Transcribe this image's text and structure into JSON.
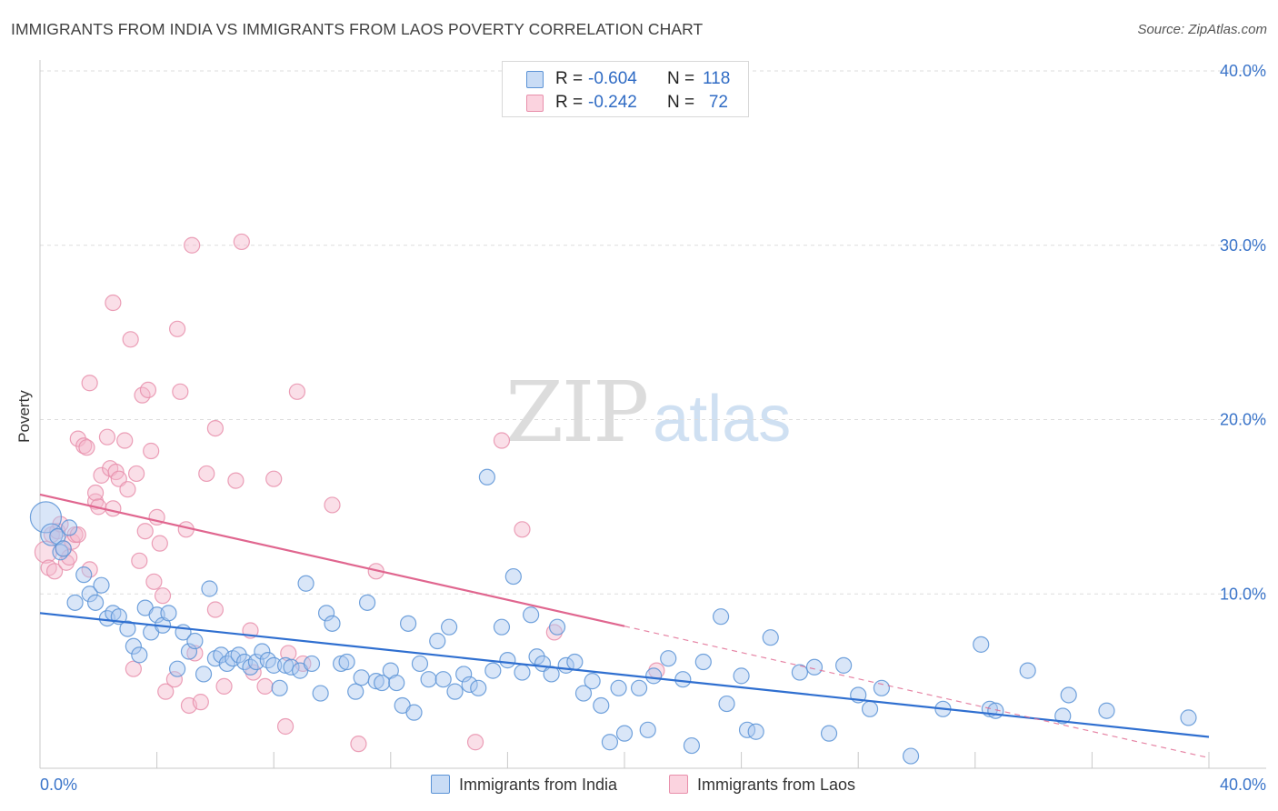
{
  "header": {
    "title": "IMMIGRANTS FROM INDIA VS IMMIGRANTS FROM LAOS POVERTY CORRELATION CHART",
    "source": "Source: ZipAtlas.com"
  },
  "watermark": {
    "zip": "ZIP",
    "atlas": "atlas"
  },
  "legend": {
    "rows": [
      {
        "r_label": "R =",
        "r_value": "-0.604",
        "n_label": "N =",
        "n_value": "118"
      },
      {
        "r_label": "R =",
        "r_value": "-0.242",
        "n_label": "N =",
        "n_value": "72"
      }
    ]
  },
  "bottom_legend": {
    "india": "Immigrants from India",
    "laos": "Immigrants from Laos"
  },
  "colors": {
    "india_fill": "#aac8f0",
    "india_stroke": "#5b93d6",
    "india_line": "#2f6fd0",
    "laos_fill": "#f5b8cb",
    "laos_stroke": "#e88fab",
    "laos_line": "#e0668f",
    "tick_text": "#3a74c9",
    "grid": "#dddddd"
  },
  "chart_data": {
    "type": "scatter",
    "title": "IMMIGRANTS FROM INDIA VS IMMIGRANTS FROM LAOS POVERTY CORRELATION CHART",
    "xlabel": "",
    "ylabel": "Poverty",
    "xlim": [
      0,
      40
    ],
    "ylim": [
      0,
      40
    ],
    "x_tick_labels": [
      "0.0%",
      "40.0%"
    ],
    "y_ticks": [
      10,
      20,
      30,
      40
    ],
    "y_tick_labels": [
      "10.0%",
      "20.0%",
      "30.0%",
      "40.0%"
    ],
    "grid": true,
    "series": [
      {
        "name": "Immigrants from India",
        "r": -0.604,
        "n": 118,
        "trend": {
          "x0": 0,
          "y0": 8.9,
          "x1": 40,
          "y1": 1.8,
          "dashed_from": null
        },
        "points": [
          [
            0.2,
            14.4,
            3
          ],
          [
            0.4,
            13.4,
            2
          ],
          [
            0.6,
            13.3,
            1
          ],
          [
            0.7,
            12.4,
            1
          ],
          [
            1.0,
            13.8,
            1
          ],
          [
            0.8,
            12.6,
            1
          ],
          [
            1.2,
            9.5,
            1
          ],
          [
            1.5,
            11.1,
            1
          ],
          [
            1.7,
            10.0,
            1
          ],
          [
            1.9,
            9.5,
            1
          ],
          [
            2.1,
            10.5,
            1
          ],
          [
            2.3,
            8.6,
            1
          ],
          [
            2.5,
            8.9,
            1
          ],
          [
            2.7,
            8.7,
            1
          ],
          [
            3.0,
            8.0,
            1
          ],
          [
            3.2,
            7.0,
            1
          ],
          [
            3.4,
            6.5,
            1
          ],
          [
            3.6,
            9.2,
            1
          ],
          [
            3.8,
            7.8,
            1
          ],
          [
            4.0,
            8.8,
            1
          ],
          [
            4.2,
            8.2,
            1
          ],
          [
            4.4,
            8.9,
            1
          ],
          [
            4.7,
            5.7,
            1
          ],
          [
            4.9,
            7.8,
            1
          ],
          [
            5.1,
            6.7,
            1
          ],
          [
            5.3,
            7.3,
            1
          ],
          [
            5.6,
            5.4,
            1
          ],
          [
            5.8,
            10.3,
            1
          ],
          [
            6.0,
            6.3,
            1
          ],
          [
            6.2,
            6.5,
            1
          ],
          [
            6.4,
            6.0,
            1
          ],
          [
            6.6,
            6.3,
            1
          ],
          [
            6.8,
            6.5,
            1
          ],
          [
            7.0,
            6.1,
            1
          ],
          [
            7.2,
            5.8,
            1
          ],
          [
            7.4,
            6.1,
            1
          ],
          [
            7.6,
            6.7,
            1
          ],
          [
            7.8,
            6.2,
            1
          ],
          [
            8.0,
            5.9,
            1
          ],
          [
            8.2,
            4.6,
            1
          ],
          [
            8.4,
            5.9,
            1
          ],
          [
            8.6,
            5.8,
            1
          ],
          [
            8.9,
            5.6,
            1
          ],
          [
            9.1,
            10.6,
            1
          ],
          [
            9.3,
            6.0,
            1
          ],
          [
            9.6,
            4.3,
            1
          ],
          [
            9.8,
            8.9,
            1
          ],
          [
            10.0,
            8.3,
            1
          ],
          [
            10.3,
            6.0,
            1
          ],
          [
            10.5,
            6.1,
            1
          ],
          [
            10.8,
            4.4,
            1
          ],
          [
            11.0,
            5.2,
            1
          ],
          [
            11.2,
            9.5,
            1
          ],
          [
            11.5,
            5.0,
            1
          ],
          [
            11.7,
            4.9,
            1
          ],
          [
            12.0,
            5.6,
            1
          ],
          [
            12.2,
            4.9,
            1
          ],
          [
            12.4,
            3.6,
            1
          ],
          [
            12.6,
            8.3,
            1
          ],
          [
            12.8,
            3.2,
            1
          ],
          [
            13.0,
            6.0,
            1
          ],
          [
            13.3,
            5.1,
            1
          ],
          [
            13.6,
            7.3,
            1
          ],
          [
            13.8,
            5.1,
            1
          ],
          [
            14.0,
            8.1,
            1
          ],
          [
            14.2,
            4.4,
            1
          ],
          [
            14.5,
            5.4,
            1
          ],
          [
            14.7,
            4.8,
            1
          ],
          [
            15.0,
            4.6,
            1
          ],
          [
            15.3,
            16.7,
            1
          ],
          [
            15.5,
            5.6,
            1
          ],
          [
            15.8,
            8.1,
            1
          ],
          [
            16.0,
            6.2,
            1
          ],
          [
            16.2,
            11.0,
            1
          ],
          [
            16.5,
            5.5,
            1
          ],
          [
            16.8,
            8.8,
            1
          ],
          [
            17.0,
            6.4,
            1
          ],
          [
            17.2,
            6.0,
            1
          ],
          [
            17.5,
            5.4,
            1
          ],
          [
            17.7,
            8.1,
            1
          ],
          [
            18.0,
            5.9,
            1
          ],
          [
            18.3,
            6.1,
            1
          ],
          [
            18.6,
            4.3,
            1
          ],
          [
            18.9,
            5.0,
            1
          ],
          [
            19.2,
            3.6,
            1
          ],
          [
            19.5,
            1.5,
            1
          ],
          [
            19.8,
            4.6,
            1
          ],
          [
            20.0,
            2.0,
            1
          ],
          [
            20.5,
            4.6,
            1
          ],
          [
            20.8,
            2.2,
            1
          ],
          [
            21.0,
            5.3,
            1
          ],
          [
            21.5,
            6.3,
            1
          ],
          [
            22.0,
            5.1,
            1
          ],
          [
            22.3,
            1.3,
            1
          ],
          [
            22.7,
            6.1,
            1
          ],
          [
            23.3,
            8.7,
            1
          ],
          [
            23.5,
            3.7,
            1
          ],
          [
            24.0,
            5.3,
            1
          ],
          [
            24.2,
            2.2,
            1
          ],
          [
            24.5,
            2.1,
            1
          ],
          [
            25.0,
            7.5,
            1
          ],
          [
            26.0,
            5.5,
            1
          ],
          [
            26.5,
            5.8,
            1
          ],
          [
            27.0,
            2.0,
            1
          ],
          [
            27.5,
            5.9,
            1
          ],
          [
            28.0,
            4.2,
            1
          ],
          [
            28.4,
            3.4,
            1
          ],
          [
            28.8,
            4.6,
            1
          ],
          [
            29.8,
            0.7,
            1
          ],
          [
            30.9,
            3.4,
            1
          ],
          [
            32.2,
            7.1,
            1
          ],
          [
            32.5,
            3.4,
            1
          ],
          [
            32.7,
            3.3,
            1
          ],
          [
            33.8,
            5.6,
            1
          ],
          [
            35.0,
            3.0,
            1
          ],
          [
            35.2,
            4.2,
            1
          ],
          [
            36.5,
            3.3,
            1
          ],
          [
            39.3,
            2.9,
            1
          ]
        ]
      },
      {
        "name": "Immigrants from Laos",
        "r": -0.242,
        "n": 72,
        "trend": {
          "x0": 0,
          "y0": 15.7,
          "x1": 40,
          "y1": 0.6,
          "dashed_from": 20.0
        },
        "points": [
          [
            0.2,
            12.4,
            2
          ],
          [
            0.3,
            11.5,
            1
          ],
          [
            0.4,
            13.4,
            1
          ],
          [
            0.5,
            11.3,
            1
          ],
          [
            0.6,
            13.6,
            1
          ],
          [
            0.7,
            14.0,
            1
          ],
          [
            0.8,
            12.6,
            1
          ],
          [
            0.9,
            11.8,
            1
          ],
          [
            1.0,
            12.1,
            1
          ],
          [
            1.1,
            13.0,
            1
          ],
          [
            1.2,
            13.4,
            1
          ],
          [
            1.3,
            13.4,
            1
          ],
          [
            1.3,
            18.9,
            1
          ],
          [
            1.5,
            18.5,
            1
          ],
          [
            1.6,
            18.4,
            1
          ],
          [
            1.7,
            11.4,
            1
          ],
          [
            1.7,
            22.1,
            1
          ],
          [
            1.9,
            15.3,
            1
          ],
          [
            1.9,
            15.8,
            1
          ],
          [
            2.0,
            15.0,
            1
          ],
          [
            2.1,
            16.8,
            1
          ],
          [
            2.3,
            19.0,
            1
          ],
          [
            2.4,
            17.2,
            1
          ],
          [
            2.5,
            14.9,
            1
          ],
          [
            2.5,
            26.7,
            1
          ],
          [
            2.6,
            17.0,
            1
          ],
          [
            2.7,
            16.6,
            1
          ],
          [
            2.9,
            18.8,
            1
          ],
          [
            3.0,
            16.0,
            1
          ],
          [
            3.1,
            24.6,
            1
          ],
          [
            3.2,
            5.7,
            1
          ],
          [
            3.3,
            16.9,
            1
          ],
          [
            3.4,
            11.9,
            1
          ],
          [
            3.5,
            21.4,
            1
          ],
          [
            3.6,
            13.6,
            1
          ],
          [
            3.7,
            21.7,
            1
          ],
          [
            3.8,
            18.2,
            1
          ],
          [
            3.9,
            10.7,
            1
          ],
          [
            4.0,
            14.4,
            1
          ],
          [
            4.1,
            12.9,
            1
          ],
          [
            4.2,
            9.9,
            1
          ],
          [
            4.3,
            4.4,
            1
          ],
          [
            4.6,
            5.1,
            1
          ],
          [
            4.7,
            25.2,
            1
          ],
          [
            4.8,
            21.6,
            1
          ],
          [
            5.0,
            13.7,
            1
          ],
          [
            5.1,
            3.6,
            1
          ],
          [
            5.2,
            30.0,
            1
          ],
          [
            5.3,
            6.6,
            1
          ],
          [
            5.5,
            3.8,
            1
          ],
          [
            5.7,
            16.9,
            1
          ],
          [
            6.0,
            19.5,
            1
          ],
          [
            6.0,
            9.1,
            1
          ],
          [
            6.3,
            4.7,
            1
          ],
          [
            6.7,
            16.5,
            1
          ],
          [
            6.9,
            30.2,
            1
          ],
          [
            7.2,
            7.9,
            1
          ],
          [
            7.3,
            5.5,
            1
          ],
          [
            7.7,
            4.7,
            1
          ],
          [
            8.0,
            16.6,
            1
          ],
          [
            8.4,
            2.4,
            1
          ],
          [
            8.5,
            6.6,
            1
          ],
          [
            8.8,
            21.6,
            1
          ],
          [
            9.0,
            6.0,
            1
          ],
          [
            10.0,
            15.1,
            1
          ],
          [
            10.9,
            1.4,
            1
          ],
          [
            11.5,
            11.3,
            1
          ],
          [
            14.9,
            1.5,
            1
          ],
          [
            15.8,
            18.8,
            1
          ],
          [
            16.5,
            13.7,
            1
          ],
          [
            17.6,
            7.8,
            1
          ],
          [
            21.1,
            5.6,
            1
          ]
        ]
      }
    ]
  }
}
